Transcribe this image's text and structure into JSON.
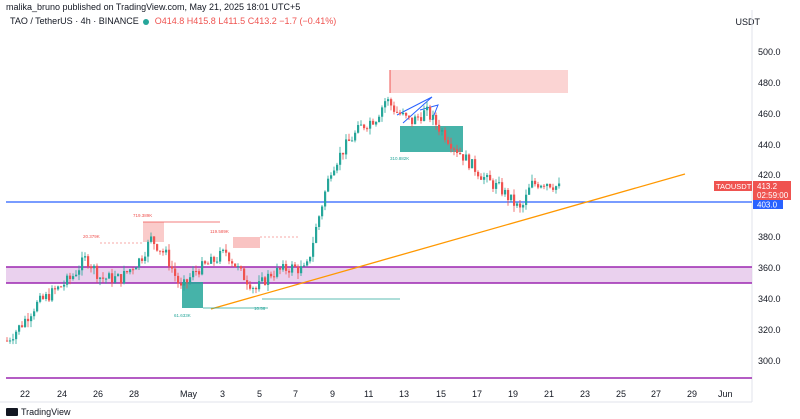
{
  "header": {
    "published_by": "malika_bruno published on TradingView.com, May 21, 2025 18:01 UTC+5"
  },
  "symbol": {
    "name": "TAO / TetherUS · 4h · BINANCE",
    "open": "O414.8",
    "high": "H415.8",
    "low": "L411.5",
    "close": "C413.2",
    "change": "−1.7 (−0.41%)"
  },
  "currency": "USDT",
  "price_axis": {
    "ticks": [
      "500.0",
      "480.0",
      "460.0",
      "440.0",
      "420.0",
      "380.0",
      "360.0",
      "340.0",
      "320.0",
      "300.0"
    ],
    "last_price_symbol": "TAOUSDT",
    "last_price": "413.2",
    "countdown": "02:59:00",
    "hline_price": "403.0"
  },
  "time_axis": {
    "ticks": [
      "22",
      "24",
      "26",
      "28",
      "May",
      "3",
      "5",
      "7",
      "9",
      "11",
      "13",
      "15",
      "17",
      "19",
      "21",
      "23",
      "25",
      "27",
      "29",
      "Jun"
    ]
  },
  "annotations": {
    "label_a": "20.379K",
    "label_b": "719.389K",
    "label_c": "119.589K",
    "label_d": "61.633K",
    "label_e": "10.56",
    "label_f": "310.882K"
  },
  "colors": {
    "up": "#26a69a",
    "down": "#ef5350",
    "blue_line": "#2962ff",
    "orange_line": "#ff9800",
    "purple": "#9c27b0",
    "purple_fill": "#e1bee7"
  },
  "footer": {
    "brand": "TradingView"
  }
}
